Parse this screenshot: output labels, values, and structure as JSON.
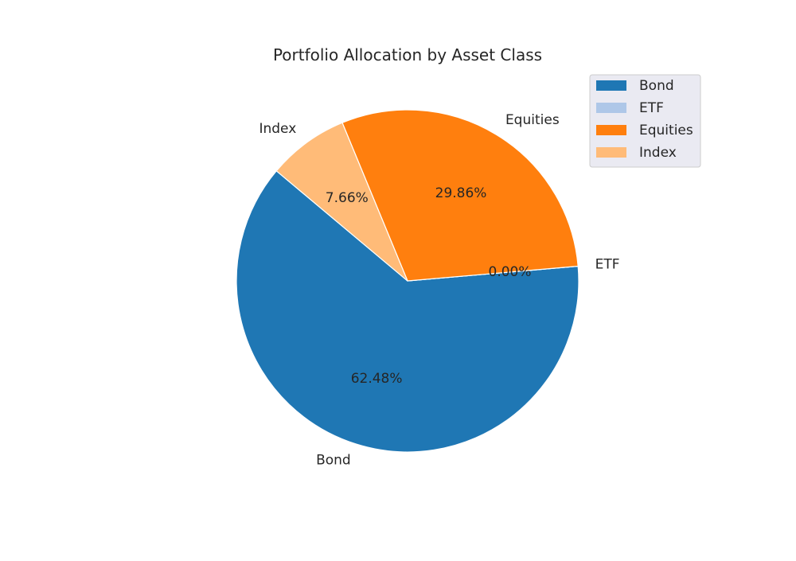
{
  "chart_data": {
    "type": "pie",
    "title": "Portfolio Allocation by Asset Class",
    "slices": [
      {
        "label": "Bond",
        "value": 62.48,
        "percent_label": "62.48%",
        "color": "#1f77b4"
      },
      {
        "label": "ETF",
        "value": 0.0,
        "percent_label": "0.00%",
        "color": "#aec7e8"
      },
      {
        "label": "Equities",
        "value": 29.86,
        "percent_label": "29.86%",
        "color": "#ff7f0e"
      },
      {
        "label": "Index",
        "value": 7.66,
        "percent_label": "7.66%",
        "color": "#ffbb78"
      }
    ],
    "legend": {
      "placement": "top-right",
      "entries": [
        "Bond",
        "ETF",
        "Equities",
        "Index"
      ]
    }
  }
}
